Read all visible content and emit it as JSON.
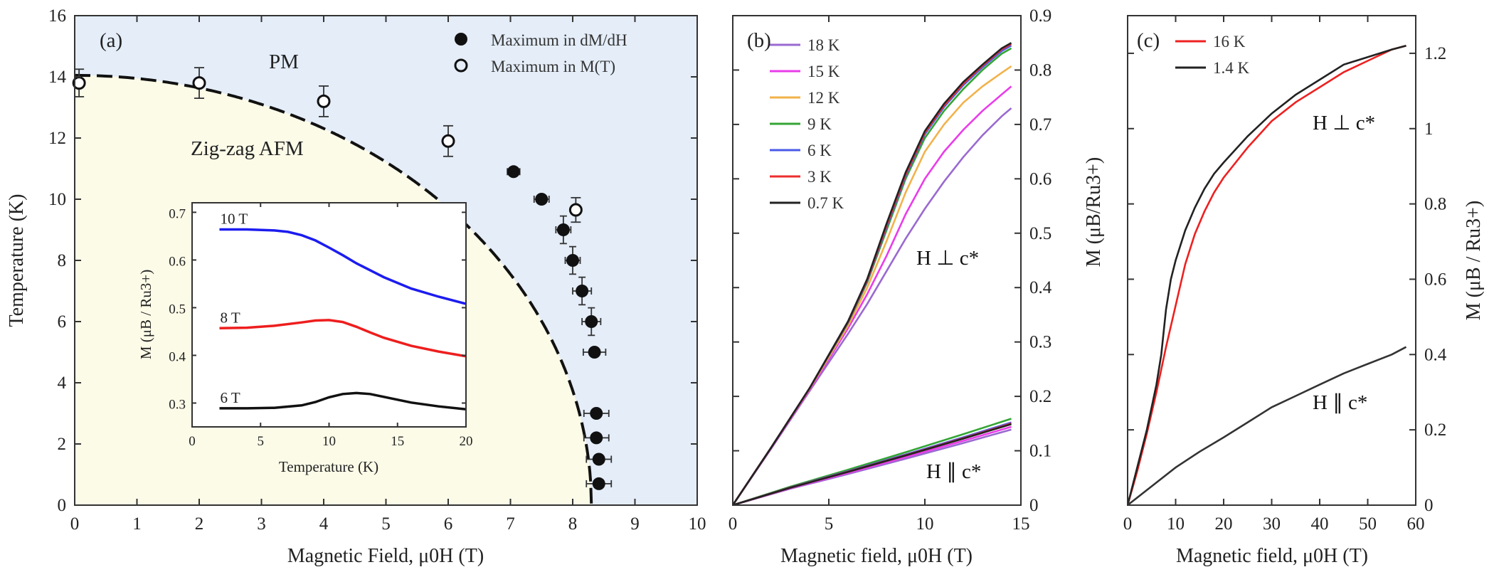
{
  "chart_data": [
    {
      "id": "a",
      "type": "scatter",
      "panel_label": "(a)",
      "xlabel": "Magnetic Field, μ0H (T)",
      "ylabel": "Temperature (K)",
      "xlim": [
        0,
        10
      ],
      "ylim": [
        0,
        16
      ],
      "xticks": [
        "0",
        "1",
        "2",
        "3",
        "4",
        "5",
        "6",
        "7",
        "8",
        "9",
        "10"
      ],
      "yticks": [
        "0",
        "2",
        "4",
        "6",
        "8",
        "10",
        "12",
        "14",
        "16"
      ],
      "regions": {
        "upper": "PM",
        "lower": "Zig-zag AFM",
        "upper_color": "#e4edf8",
        "lower_color": "#fcfbe8"
      },
      "legend": {
        "filled": "Maximum in dM/dH",
        "open": "Maximum in M(T)"
      },
      "filled_points": [
        {
          "x": 7.05,
          "y": 10.9,
          "xerr": 0.1,
          "yerr": 0
        },
        {
          "x": 7.5,
          "y": 10.0,
          "xerr": 0.12,
          "yerr": 0
        },
        {
          "x": 7.85,
          "y": 9.0,
          "xerr": 0.12,
          "yerr": 0.45
        },
        {
          "x": 8.0,
          "y": 8.0,
          "xerr": 0.12,
          "yerr": 0.45
        },
        {
          "x": 8.15,
          "y": 7.0,
          "xerr": 0.15,
          "yerr": 0.45
        },
        {
          "x": 8.3,
          "y": 6.0,
          "xerr": 0.15,
          "yerr": 0.45
        },
        {
          "x": 8.35,
          "y": 5.0,
          "xerr": 0.18,
          "yerr": 0
        },
        {
          "x": 8.38,
          "y": 3.0,
          "xerr": 0.2,
          "yerr": 0
        },
        {
          "x": 8.38,
          "y": 2.2,
          "xerr": 0.2,
          "yerr": 0
        },
        {
          "x": 8.42,
          "y": 1.5,
          "xerr": 0.2,
          "yerr": 0
        },
        {
          "x": 8.42,
          "y": 0.7,
          "xerr": 0.2,
          "yerr": 0
        }
      ],
      "open_points": [
        {
          "x": 0.07,
          "y": 13.8,
          "yerr": 0.45
        },
        {
          "x": 2.0,
          "y": 13.8,
          "yerr": 0.5
        },
        {
          "x": 4.0,
          "y": 13.2,
          "yerr": 0.5
        },
        {
          "x": 6.0,
          "y": 11.9,
          "yerr": 0.5
        },
        {
          "x": 8.05,
          "y": 9.65,
          "yerr": 0.4
        }
      ],
      "phase_boundary": {
        "Tn0": 14.05,
        "Hc": 8.3,
        "exponent": 0.5
      },
      "inset": {
        "type": "line",
        "xlabel": "Temperature (K)",
        "ylabel": "M (μB / Ru3+)",
        "xlim": [
          0,
          20
        ],
        "ylim": [
          0.25,
          0.72
        ],
        "xticks": [
          "0",
          "5",
          "10",
          "15",
          "20"
        ],
        "yticks": [
          "0.3",
          "0.4",
          "0.5",
          "0.6",
          "0.7"
        ],
        "series": [
          {
            "name": "10 T",
            "color": "#1c1cf0",
            "x": [
              2,
              4,
              6,
              7,
              8,
              9,
              10,
              11,
              12,
              14,
              16,
              18,
              20
            ],
            "y": [
              0.664,
              0.664,
              0.662,
              0.659,
              0.652,
              0.641,
              0.626,
              0.61,
              0.593,
              0.564,
              0.54,
              0.523,
              0.508
            ]
          },
          {
            "name": "8 T",
            "color": "#ee1e1e",
            "x": [
              2,
              4,
              6,
              8,
              9,
              10,
              11,
              12,
              13,
              14,
              16,
              18,
              20
            ],
            "y": [
              0.457,
              0.458,
              0.462,
              0.469,
              0.473,
              0.474,
              0.47,
              0.46,
              0.448,
              0.437,
              0.42,
              0.408,
              0.398
            ]
          },
          {
            "name": "6 T",
            "color": "#111111",
            "x": [
              2,
              4,
              6,
              8,
              9,
              10,
              11,
              12,
              13,
              14,
              16,
              18,
              20
            ],
            "y": [
              0.289,
              0.289,
              0.29,
              0.295,
              0.302,
              0.312,
              0.319,
              0.321,
              0.319,
              0.313,
              0.301,
              0.293,
              0.287
            ]
          }
        ]
      }
    },
    {
      "id": "b",
      "type": "line",
      "panel_label": "(b)",
      "xlabel": "Magnetic field, μ0H (T)",
      "ylabel": "M (μB/Ru3+)",
      "xlim": [
        0,
        15
      ],
      "ylim": [
        0,
        0.9
      ],
      "xticks": [
        "0",
        "5",
        "10",
        "15"
      ],
      "yticks": [
        "0",
        "0.1",
        "0.2",
        "0.3",
        "0.4",
        "0.5",
        "0.6",
        "0.7",
        "0.8",
        "0.9"
      ],
      "annotations": {
        "perp": "H ⊥ c*",
        "par": "H ∥ c*"
      },
      "series": [
        {
          "name": "18 K",
          "color": "#9a6ad0",
          "perp_x": [
            0,
            2,
            4,
            6,
            7,
            8,
            9,
            10,
            11,
            12,
            13,
            14,
            14.5
          ],
          "perp_y": [
            0,
            0.104,
            0.21,
            0.315,
            0.37,
            0.43,
            0.49,
            0.545,
            0.595,
            0.64,
            0.68,
            0.715,
            0.73
          ],
          "par_end": 0.135
        },
        {
          "name": "15 K",
          "color": "#ea3cea",
          "perp_x": [
            0,
            2,
            4,
            6,
            7,
            8,
            9,
            10,
            11,
            12,
            13,
            14,
            14.5
          ],
          "perp_y": [
            0,
            0.105,
            0.212,
            0.325,
            0.388,
            0.458,
            0.535,
            0.6,
            0.65,
            0.69,
            0.725,
            0.755,
            0.77
          ],
          "par_end": 0.14
        },
        {
          "name": "12 K",
          "color": "#f2b24a",
          "perp_x": [
            0,
            2,
            4,
            6,
            7,
            8,
            9,
            10,
            11,
            12,
            13,
            14,
            14.5
          ],
          "perp_y": [
            0,
            0.106,
            0.214,
            0.33,
            0.4,
            0.485,
            0.575,
            0.65,
            0.7,
            0.74,
            0.77,
            0.795,
            0.807
          ],
          "par_end": 0.145
        },
        {
          "name": "9 K",
          "color": "#34a534",
          "perp_x": [
            0,
            2,
            4,
            6,
            7,
            8,
            9,
            10,
            11,
            12,
            13,
            14,
            14.5
          ],
          "perp_y": [
            0,
            0.106,
            0.215,
            0.335,
            0.41,
            0.505,
            0.6,
            0.675,
            0.725,
            0.765,
            0.8,
            0.83,
            0.84
          ],
          "par_end": 0.155
        },
        {
          "name": "6 K",
          "color": "#4a5ae8",
          "perp_x": [
            0,
            2,
            4,
            6,
            7,
            8,
            9,
            10,
            11,
            12,
            13,
            14,
            14.5
          ],
          "perp_y": [
            0,
            0.106,
            0.215,
            0.336,
            0.412,
            0.51,
            0.605,
            0.682,
            0.732,
            0.772,
            0.805,
            0.835,
            0.845
          ],
          "par_end": 0.148
        },
        {
          "name": "3 K",
          "color": "#ee2e2e",
          "perp_x": [
            0,
            2,
            4,
            6,
            7,
            8,
            9,
            10,
            11,
            12,
            13,
            14,
            14.5
          ],
          "perp_y": [
            0,
            0.106,
            0.215,
            0.337,
            0.414,
            0.513,
            0.608,
            0.685,
            0.735,
            0.775,
            0.808,
            0.838,
            0.848
          ],
          "par_end": 0.146
        },
        {
          "name": "0.7 K",
          "color": "#222222",
          "perp_x": [
            0,
            2,
            4,
            6,
            7,
            8,
            9,
            10,
            11,
            12,
            13,
            14,
            14.5
          ],
          "perp_y": [
            0,
            0.106,
            0.215,
            0.338,
            0.416,
            0.517,
            0.612,
            0.688,
            0.738,
            0.778,
            0.81,
            0.84,
            0.85
          ],
          "par_end": 0.145
        }
      ]
    },
    {
      "id": "c",
      "type": "line",
      "panel_label": "(c)",
      "xlabel": "Magnetic field, μ0H (T)",
      "ylabel": "M (μB / Ru3+)",
      "xlim": [
        0,
        60
      ],
      "ylim": [
        0,
        1.3
      ],
      "xticks": [
        "0",
        "10",
        "20",
        "30",
        "40",
        "50",
        "60"
      ],
      "yticks": [
        "0",
        "0.2",
        "0.4",
        "0.6",
        "0.8",
        "1",
        "1.2"
      ],
      "annotations": {
        "perp": "H ⊥ c*",
        "par": "H ∥ c*"
      },
      "series": [
        {
          "name": "16 K",
          "color": "#ee2020",
          "x": [
            0,
            2,
            4,
            6,
            8,
            10,
            12,
            14,
            16,
            18,
            20,
            25,
            30,
            35,
            40,
            45,
            50,
            55,
            58
          ],
          "y": [
            0,
            0.09,
            0.19,
            0.3,
            0.42,
            0.53,
            0.64,
            0.72,
            0.78,
            0.83,
            0.87,
            0.95,
            1.02,
            1.07,
            1.11,
            1.15,
            1.18,
            1.21,
            1.22
          ]
        },
        {
          "name": "1.4 K",
          "color": "#222222",
          "x": [
            0,
            2,
            4,
            6,
            7,
            8,
            9,
            10,
            12,
            14,
            16,
            18,
            20,
            25,
            30,
            35,
            40,
            45,
            50,
            55,
            58
          ],
          "y": [
            0,
            0.1,
            0.2,
            0.32,
            0.4,
            0.52,
            0.6,
            0.65,
            0.73,
            0.79,
            0.84,
            0.88,
            0.91,
            0.98,
            1.04,
            1.09,
            1.13,
            1.17,
            1.19,
            1.21,
            1.22
          ]
        },
        {
          "name": "1.4 K (H ∥ c*)",
          "color": "#333333",
          "x": [
            0,
            5,
            10,
            15,
            20,
            25,
            30,
            35,
            40,
            45,
            50,
            55,
            58
          ],
          "y": [
            0,
            0.05,
            0.1,
            0.142,
            0.18,
            0.22,
            0.26,
            0.29,
            0.32,
            0.35,
            0.375,
            0.4,
            0.42
          ]
        }
      ]
    }
  ]
}
